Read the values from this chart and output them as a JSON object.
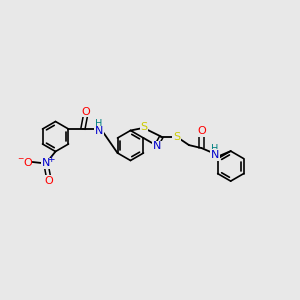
{
  "bg_color": "#e8e8e8",
  "bond_color": "#000000",
  "atom_colors": {
    "N": "#0000cc",
    "O": "#ff0000",
    "S": "#cccc00",
    "H": "#008080",
    "C": "#000000"
  },
  "font_size": 7.5,
  "figsize": [
    3.0,
    3.0
  ],
  "dpi": 100
}
